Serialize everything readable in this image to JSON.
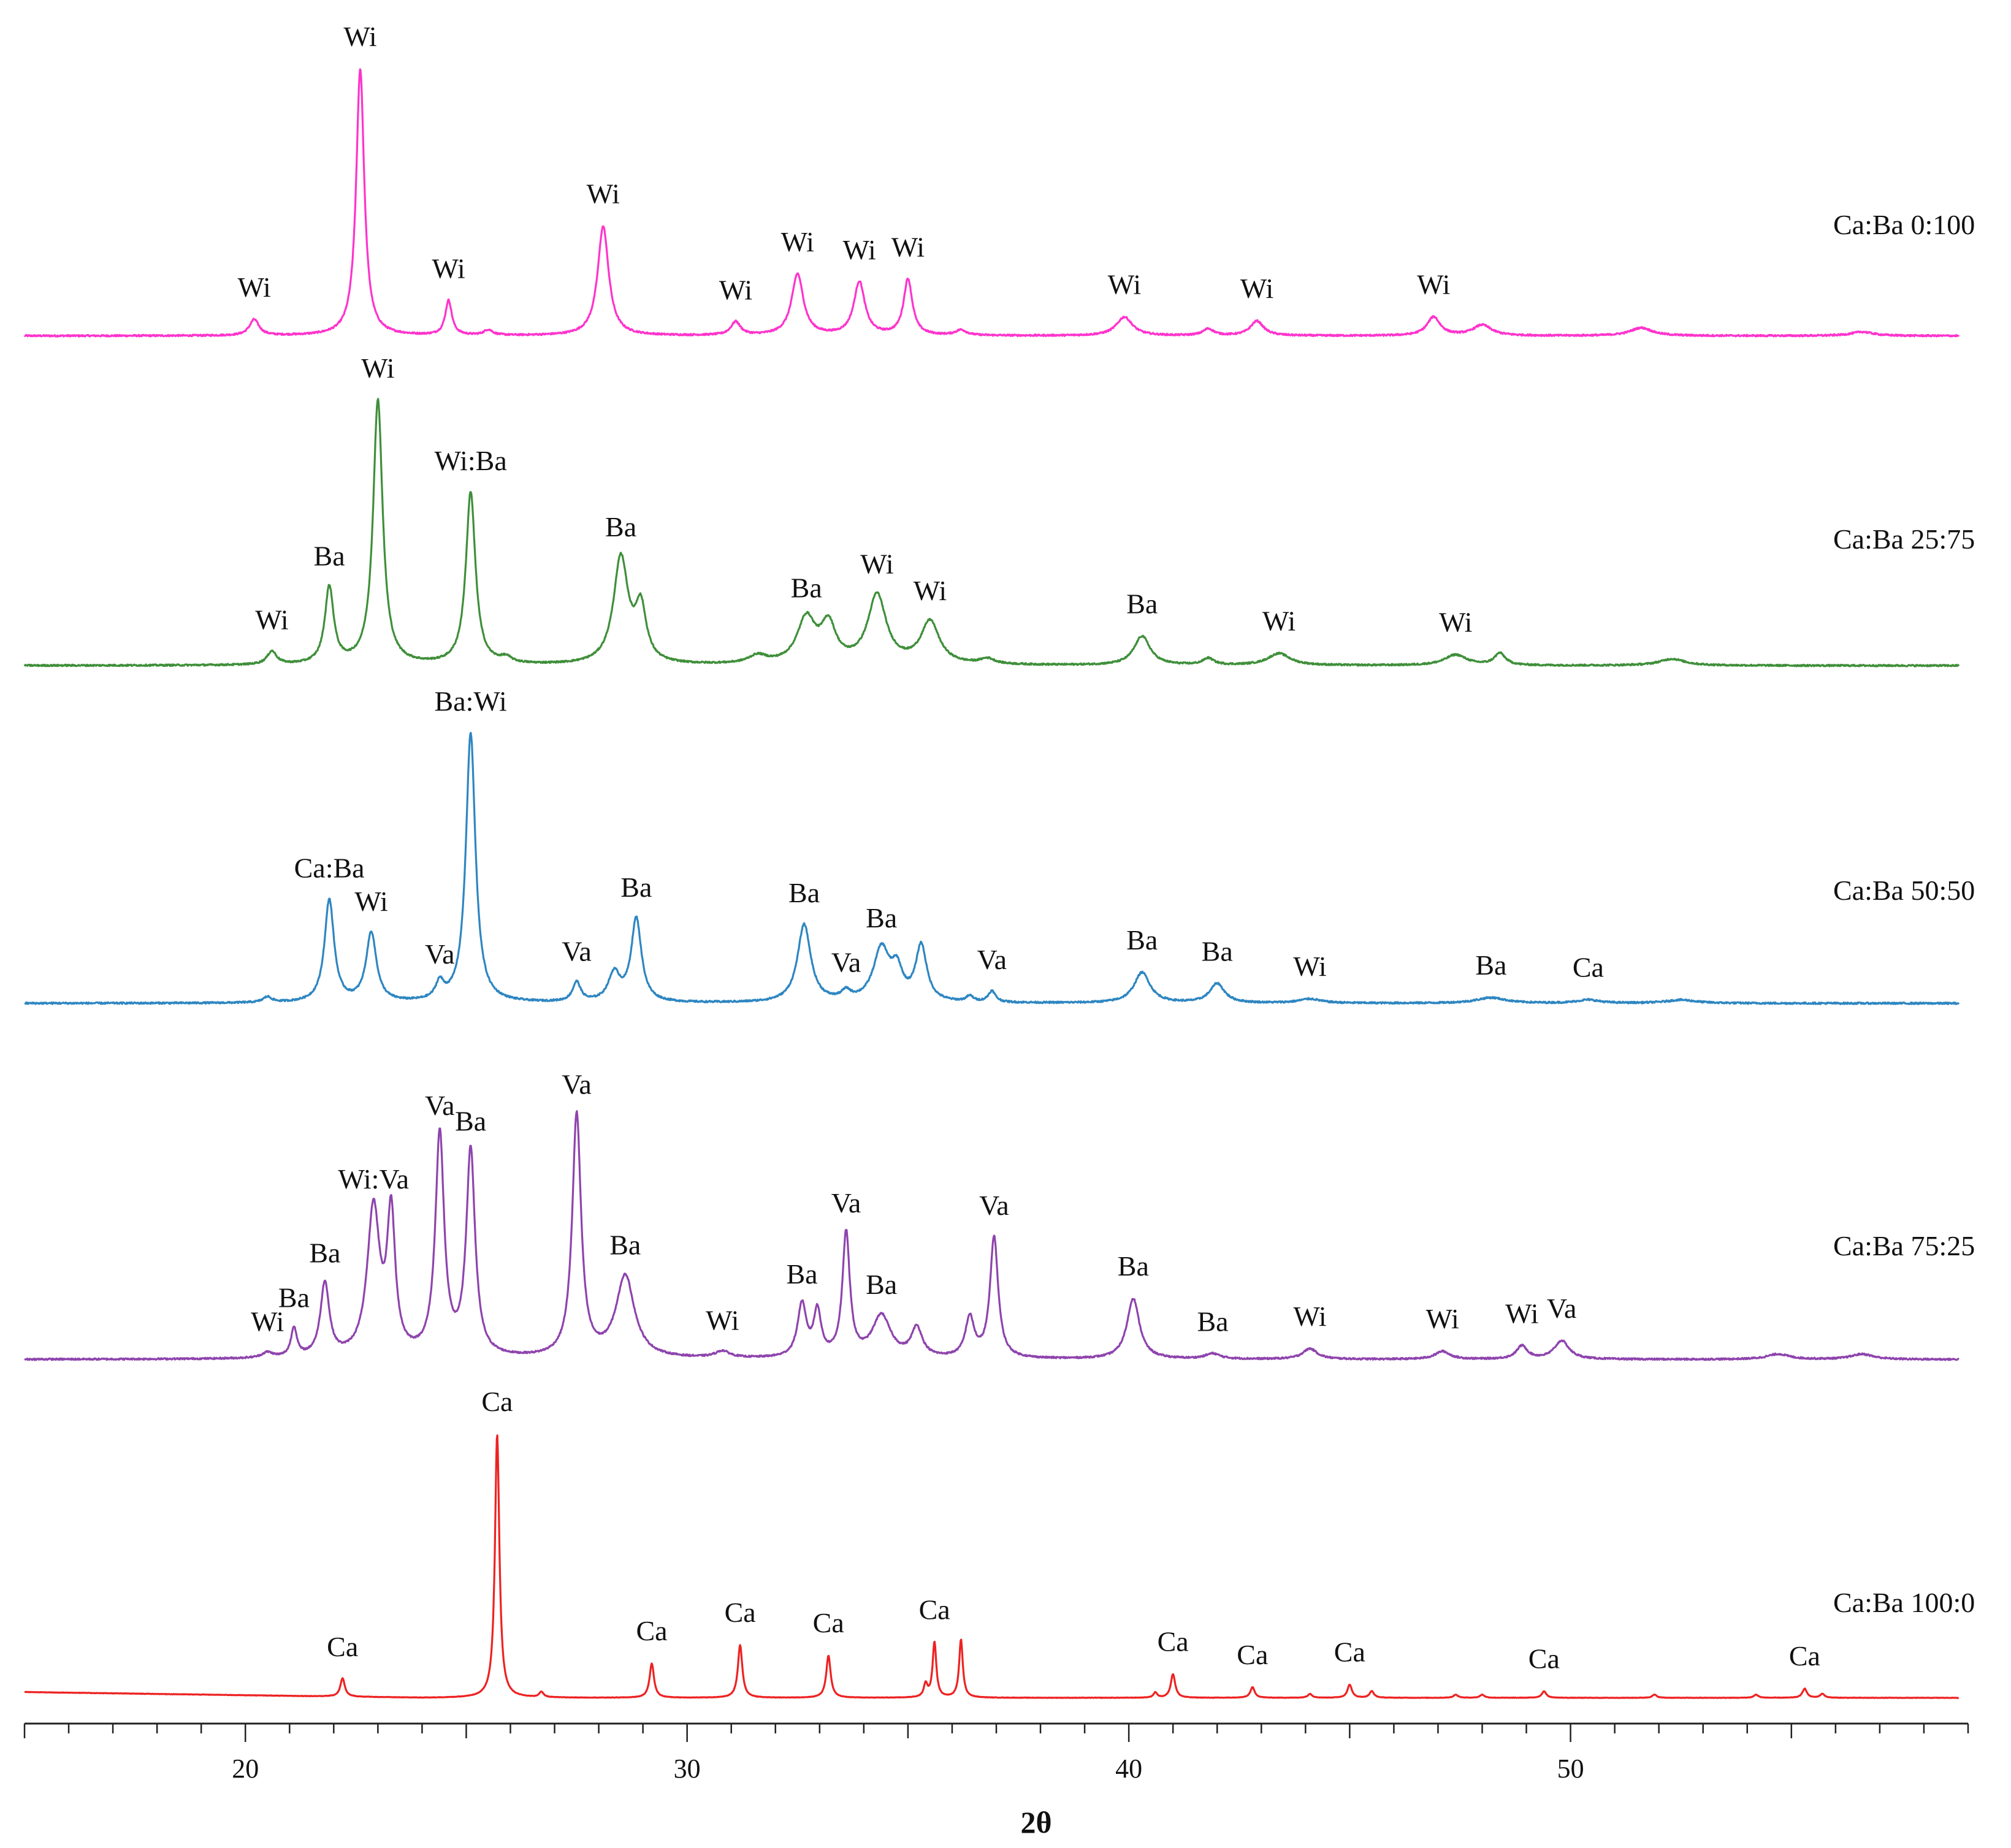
{
  "chart_data": {
    "type": "line",
    "title": "",
    "xlabel": "2θ",
    "ylabel": "",
    "xlim": [
      15,
      59
    ],
    "x_ticks": [
      20,
      30,
      40,
      50
    ],
    "grid": false,
    "series": [
      {
        "name": "Ca:Ba 0:100",
        "color": "#ff33cc",
        "peaks": [
          {
            "x": 20.2,
            "h": 0.06,
            "w": 0.13,
            "label": "Wi"
          },
          {
            "x": 22.6,
            "h": 1.0,
            "w": 0.11,
            "label": "Wi"
          },
          {
            "x": 24.6,
            "h": 0.13,
            "w": 0.09,
            "label": "Wi"
          },
          {
            "x": 25.5,
            "h": 0.02,
            "w": 0.12
          },
          {
            "x": 28.1,
            "h": 0.41,
            "w": 0.15,
            "label": "Wi"
          },
          {
            "x": 31.1,
            "h": 0.05,
            "w": 0.13,
            "label": "Wi"
          },
          {
            "x": 32.5,
            "h": 0.23,
            "w": 0.16,
            "label": "Wi"
          },
          {
            "x": 33.9,
            "h": 0.2,
            "w": 0.15,
            "label": "Wi"
          },
          {
            "x": 35.0,
            "h": 0.21,
            "w": 0.12,
            "label": "Wi"
          },
          {
            "x": 36.2,
            "h": 0.02,
            "w": 0.15
          },
          {
            "x": 39.9,
            "h": 0.07,
            "w": 0.22,
            "label": "Wi"
          },
          {
            "x": 41.8,
            "h": 0.025,
            "w": 0.15
          },
          {
            "x": 42.9,
            "h": 0.055,
            "w": 0.18,
            "label": "Wi"
          },
          {
            "x": 46.9,
            "h": 0.07,
            "w": 0.18,
            "label": "Wi"
          },
          {
            "x": 48.0,
            "h": 0.04,
            "w": 0.25
          },
          {
            "x": 51.6,
            "h": 0.03,
            "w": 0.3
          },
          {
            "x": 56.6,
            "h": 0.015,
            "w": 0.3
          }
        ]
      },
      {
        "name": "Ca:Ba 25:75",
        "color": "#3f8f3a",
        "peaks": [
          {
            "x": 20.6,
            "h": 0.05,
            "w": 0.13,
            "label": "Wi"
          },
          {
            "x": 21.9,
            "h": 0.29,
            "w": 0.12,
            "label": "Ba"
          },
          {
            "x": 23.0,
            "h": 1.0,
            "w": 0.13,
            "label": "Wi"
          },
          {
            "x": 25.1,
            "h": 0.65,
            "w": 0.13,
            "label": "Wi:Ba"
          },
          {
            "x": 25.9,
            "h": 0.02,
            "w": 0.15
          },
          {
            "x": 28.5,
            "h": 0.4,
            "w": 0.2,
            "label": "Ba"
          },
          {
            "x": 28.95,
            "h": 0.2,
            "w": 0.15
          },
          {
            "x": 31.6,
            "h": 0.03,
            "w": 0.25
          },
          {
            "x": 32.7,
            "h": 0.17,
            "w": 0.25,
            "label": "Ba"
          },
          {
            "x": 33.2,
            "h": 0.14,
            "w": 0.2
          },
          {
            "x": 34.3,
            "h": 0.26,
            "w": 0.25,
            "label": "Wi"
          },
          {
            "x": 35.5,
            "h": 0.16,
            "w": 0.25,
            "label": "Wi"
          },
          {
            "x": 36.8,
            "h": 0.02,
            "w": 0.2
          },
          {
            "x": 40.3,
            "h": 0.11,
            "w": 0.22,
            "label": "Ba"
          },
          {
            "x": 41.8,
            "h": 0.025,
            "w": 0.15
          },
          {
            "x": 43.4,
            "h": 0.045,
            "w": 0.3,
            "label": "Wi"
          },
          {
            "x": 47.4,
            "h": 0.04,
            "w": 0.3,
            "label": "Wi"
          },
          {
            "x": 48.4,
            "h": 0.045,
            "w": 0.15
          },
          {
            "x": 52.3,
            "h": 0.025,
            "w": 0.35
          }
        ]
      },
      {
        "name": "Ca:Ba 50:50",
        "color": "#2e86c1",
        "peaks": [
          {
            "x": 20.5,
            "h": 0.02,
            "w": 0.12
          },
          {
            "x": 21.9,
            "h": 0.37,
            "w": 0.13,
            "label": "Ca:Ba"
          },
          {
            "x": 22.85,
            "h": 0.25,
            "w": 0.14,
            "label": "Wi"
          },
          {
            "x": 24.4,
            "h": 0.06,
            "w": 0.11,
            "label": "Va"
          },
          {
            "x": 25.1,
            "h": 0.97,
            "w": 0.13,
            "label": "Ba:Wi"
          },
          {
            "x": 27.5,
            "h": 0.07,
            "w": 0.11,
            "label": "Va"
          },
          {
            "x": 28.35,
            "h": 0.1,
            "w": 0.16
          },
          {
            "x": 28.85,
            "h": 0.3,
            "w": 0.14,
            "label": "Ba"
          },
          {
            "x": 32.65,
            "h": 0.28,
            "w": 0.18,
            "label": "Ba"
          },
          {
            "x": 33.6,
            "h": 0.03,
            "w": 0.13,
            "label": "Va"
          },
          {
            "x": 34.4,
            "h": 0.19,
            "w": 0.22,
            "label": "Ba"
          },
          {
            "x": 34.75,
            "h": 0.1,
            "w": 0.15
          },
          {
            "x": 35.3,
            "h": 0.2,
            "w": 0.15
          },
          {
            "x": 36.4,
            "h": 0.02,
            "w": 0.1
          },
          {
            "x": 36.9,
            "h": 0.04,
            "w": 0.1,
            "label": "Va"
          },
          {
            "x": 40.3,
            "h": 0.11,
            "w": 0.22,
            "label": "Ba"
          },
          {
            "x": 42.0,
            "h": 0.07,
            "w": 0.2,
            "label": "Ba"
          },
          {
            "x": 44.1,
            "h": 0.015,
            "w": 0.3,
            "label": "Wi"
          },
          {
            "x": 48.2,
            "h": 0.02,
            "w": 0.4,
            "label": "Ba"
          },
          {
            "x": 50.4,
            "h": 0.012,
            "w": 0.3,
            "label": "Ca"
          },
          {
            "x": 52.5,
            "h": 0.012,
            "w": 0.4
          }
        ]
      },
      {
        "name": "Ca:Ba 75:25",
        "color": "#8e44ad",
        "peaks": [
          {
            "x": 20.5,
            "h": 0.02,
            "w": 0.15,
            "label": "Wi"
          },
          {
            "x": 21.1,
            "h": 0.11,
            "w": 0.08,
            "label": "Ba"
          },
          {
            "x": 21.8,
            "h": 0.28,
            "w": 0.12,
            "label": "Ba"
          },
          {
            "x": 22.9,
            "h": 0.56,
            "w": 0.17,
            "label": "Wi:Va"
          },
          {
            "x": 23.3,
            "h": 0.52,
            "w": 0.11
          },
          {
            "x": 24.4,
            "h": 0.84,
            "w": 0.12,
            "label": "Va"
          },
          {
            "x": 25.1,
            "h": 0.78,
            "w": 0.12,
            "label": "Ba"
          },
          {
            "x": 27.5,
            "h": 0.92,
            "w": 0.12,
            "label": "Va"
          },
          {
            "x": 28.6,
            "h": 0.31,
            "w": 0.25,
            "label": "Ba"
          },
          {
            "x": 30.8,
            "h": 0.025,
            "w": 0.2,
            "label": "Wi"
          },
          {
            "x": 32.6,
            "h": 0.2,
            "w": 0.12,
            "label": "Ba"
          },
          {
            "x": 32.95,
            "h": 0.17,
            "w": 0.1
          },
          {
            "x": 33.6,
            "h": 0.47,
            "w": 0.1,
            "label": "Va"
          },
          {
            "x": 34.4,
            "h": 0.16,
            "w": 0.25,
            "label": "Ba"
          },
          {
            "x": 35.2,
            "h": 0.11,
            "w": 0.15
          },
          {
            "x": 36.4,
            "h": 0.15,
            "w": 0.12
          },
          {
            "x": 36.95,
            "h": 0.46,
            "w": 0.11,
            "label": "Va"
          },
          {
            "x": 40.1,
            "h": 0.23,
            "w": 0.17,
            "label": "Ba"
          },
          {
            "x": 41.9,
            "h": 0.02,
            "w": 0.2,
            "label": "Ba"
          },
          {
            "x": 44.1,
            "h": 0.04,
            "w": 0.2,
            "label": "Wi"
          },
          {
            "x": 47.1,
            "h": 0.03,
            "w": 0.2,
            "label": "Wi"
          },
          {
            "x": 48.9,
            "h": 0.05,
            "w": 0.15,
            "label": "Wi"
          },
          {
            "x": 49.8,
            "h": 0.07,
            "w": 0.2,
            "label": "Va"
          },
          {
            "x": 54.7,
            "h": 0.02,
            "w": 0.3
          },
          {
            "x": 56.6,
            "h": 0.02,
            "w": 0.3
          }
        ]
      },
      {
        "name": "Ca:Ba 100:0",
        "color": "#ee2222",
        "peaks": [
          {
            "x": 22.2,
            "h": 0.07,
            "w": 0.06,
            "label": "Ca"
          },
          {
            "x": 25.7,
            "h": 1.0,
            "w": 0.06,
            "label": "Ca"
          },
          {
            "x": 26.7,
            "h": 0.02,
            "w": 0.06
          },
          {
            "x": 29.2,
            "h": 0.13,
            "w": 0.06,
            "label": "Ca"
          },
          {
            "x": 31.2,
            "h": 0.2,
            "w": 0.06,
            "label": "Ca"
          },
          {
            "x": 33.2,
            "h": 0.16,
            "w": 0.06,
            "label": "Ca"
          },
          {
            "x": 35.4,
            "h": 0.05,
            "w": 0.05
          },
          {
            "x": 35.6,
            "h": 0.21,
            "w": 0.05,
            "label": "Ca"
          },
          {
            "x": 36.2,
            "h": 0.22,
            "w": 0.05
          },
          {
            "x": 40.6,
            "h": 0.02,
            "w": 0.05
          },
          {
            "x": 41.0,
            "h": 0.09,
            "w": 0.06,
            "label": "Ca"
          },
          {
            "x": 42.8,
            "h": 0.04,
            "w": 0.06,
            "label": "Ca"
          },
          {
            "x": 44.1,
            "h": 0.015,
            "w": 0.06
          },
          {
            "x": 45.0,
            "h": 0.05,
            "w": 0.06,
            "label": "Ca"
          },
          {
            "x": 45.5,
            "h": 0.025,
            "w": 0.06
          },
          {
            "x": 47.4,
            "h": 0.012,
            "w": 0.06
          },
          {
            "x": 48.0,
            "h": 0.012,
            "w": 0.06
          },
          {
            "x": 49.4,
            "h": 0.025,
            "w": 0.06,
            "label": "Ca"
          },
          {
            "x": 51.9,
            "h": 0.012,
            "w": 0.06
          },
          {
            "x": 54.2,
            "h": 0.012,
            "w": 0.06
          },
          {
            "x": 55.3,
            "h": 0.035,
            "w": 0.06,
            "label": "Ca"
          },
          {
            "x": 55.7,
            "h": 0.015,
            "w": 0.06
          }
        ]
      }
    ]
  }
}
